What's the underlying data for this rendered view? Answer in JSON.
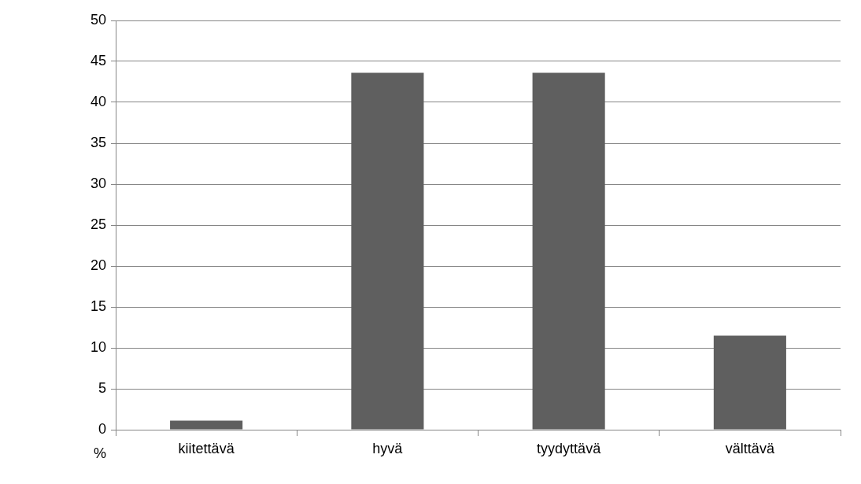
{
  "chart_data": {
    "type": "bar",
    "ylabel": "%",
    "categories": [
      "kiitettävä",
      "hyvä",
      "tyydyttävä",
      "välttävä"
    ],
    "values": [
      1.1,
      43.6,
      43.6,
      11.5
    ],
    "color": "#5f5f5f",
    "ylim": [
      0,
      50
    ],
    "yticks": [
      0,
      5,
      10,
      15,
      20,
      25,
      30,
      35,
      40,
      45,
      50
    ],
    "grid": "y",
    "legend": false
  }
}
